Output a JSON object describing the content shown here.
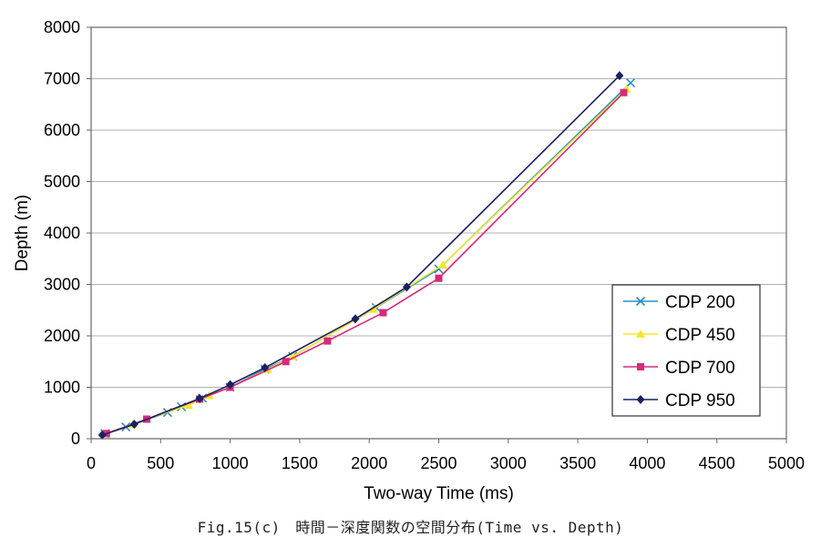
{
  "caption": "Fig.15(c)　時間－深度関数の空間分布(Time vs. Depth)",
  "chart_data": {
    "type": "line",
    "xlabel": "Two-way Time (ms)",
    "ylabel": "Depth (m)",
    "xlim": [
      0,
      5000
    ],
    "ylim": [
      0,
      8000
    ],
    "xticks": [
      0,
      500,
      1000,
      1500,
      2000,
      2500,
      3000,
      3500,
      4000,
      4500,
      5000
    ],
    "yticks": [
      0,
      1000,
      2000,
      3000,
      4000,
      5000,
      6000,
      7000,
      8000
    ],
    "grid": "horizontal",
    "legend_position": "right",
    "series": [
      {
        "name": "CDP 200",
        "color": "#2a8fc8",
        "marker": "x",
        "points": [
          [
            100,
            100
          ],
          [
            250,
            230
          ],
          [
            550,
            510
          ],
          [
            650,
            620
          ],
          [
            800,
            790
          ],
          [
            1000,
            1000
          ],
          [
            1250,
            1350
          ],
          [
            1450,
            1600
          ],
          [
            2050,
            2550
          ],
          [
            2500,
            3300
          ],
          [
            3880,
            6920
          ]
        ]
      },
      {
        "name": "CDP 450",
        "color": "#f5e62a",
        "marker": "triangle",
        "points": [
          [
            100,
            100
          ],
          [
            300,
            280
          ],
          [
            400,
            380
          ],
          [
            700,
            650
          ],
          [
            850,
            840
          ],
          [
            1000,
            1000
          ],
          [
            1270,
            1350
          ],
          [
            1450,
            1600
          ],
          [
            2030,
            2520
          ],
          [
            2530,
            3380
          ],
          [
            3850,
            6800
          ]
        ]
      },
      {
        "name": "CDP 700",
        "color": "#d62a7a",
        "marker": "square",
        "points": [
          [
            110,
            100
          ],
          [
            400,
            380
          ],
          [
            780,
            770
          ],
          [
            1000,
            1000
          ],
          [
            1400,
            1500
          ],
          [
            1700,
            1900
          ],
          [
            2100,
            2450
          ],
          [
            2500,
            3120
          ],
          [
            3830,
            6730
          ]
        ]
      },
      {
        "name": "CDP 950",
        "color": "#1a2060",
        "marker": "diamond",
        "points": [
          [
            80,
            70
          ],
          [
            310,
            280
          ],
          [
            780,
            780
          ],
          [
            1000,
            1050
          ],
          [
            1250,
            1380
          ],
          [
            1900,
            2330
          ],
          [
            2270,
            2950
          ],
          [
            3800,
            7060
          ]
        ]
      }
    ]
  }
}
